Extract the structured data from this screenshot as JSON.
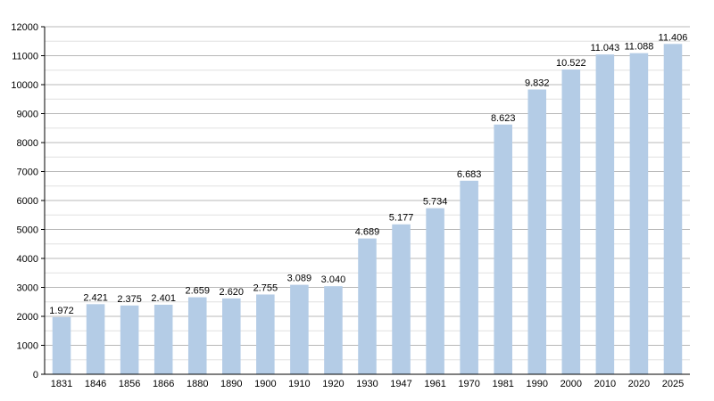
{
  "chart_data": {
    "type": "bar",
    "title": "",
    "xlabel": "",
    "ylabel": "",
    "categories": [
      "1831",
      "1846",
      "1856",
      "1866",
      "1880",
      "1890",
      "1900",
      "1910",
      "1920",
      "1930",
      "1947",
      "1961",
      "1970",
      "1981",
      "1990",
      "2000",
      "2010",
      "2020",
      "2025"
    ],
    "values": [
      1972,
      2421,
      2375,
      2401,
      2659,
      2620,
      2755,
      3089,
      3040,
      4689,
      5177,
      5734,
      6683,
      8623,
      9832,
      10522,
      11043,
      11088,
      11406
    ],
    "value_labels": [
      "1.972",
      "2.421",
      "2.375",
      "2.401",
      "2.659",
      "2.620",
      "2.755",
      "3.089",
      "3.040",
      "4.689",
      "5.177",
      "5.734",
      "6.683",
      "8.623",
      "9.832",
      "10.522",
      "11.043",
      "11.088",
      "11.406"
    ],
    "ylim": [
      0,
      12000
    ],
    "y_ticks": [
      "0",
      "1000",
      "2000",
      "3000",
      "4000",
      "5000",
      "6000",
      "7000",
      "8000",
      "9000",
      "10000",
      "11000",
      "12000"
    ],
    "grid": true,
    "minor_grid": true,
    "legend": "none",
    "colors": {
      "bar": "#b4cce6",
      "major_grid": "#b8b8b8",
      "minor_grid": "#e0e0e0",
      "axis": "#000000"
    }
  }
}
